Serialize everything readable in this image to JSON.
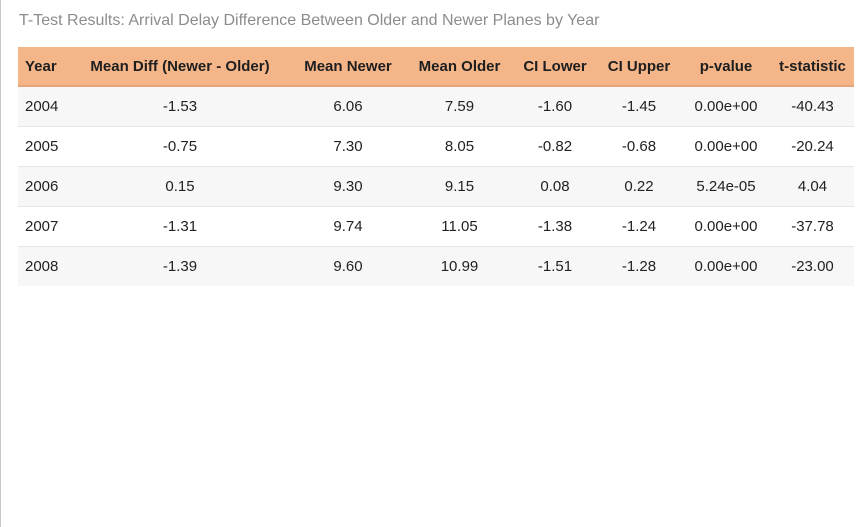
{
  "caption": "T-Test Results: Arrival Delay Difference Between Older and Newer Planes by Year",
  "colors": {
    "header_bg": "#f4b589",
    "row_alt_bg": "#f7f7f7",
    "caption_text": "#8c8c8c"
  },
  "table": {
    "headers": [
      "Year",
      "Mean Diff (Newer - Older)",
      "Mean Newer",
      "Mean Older",
      "CI Lower",
      "CI Upper",
      "p-value",
      "t-statistic"
    ],
    "rows": [
      [
        "2004",
        "-1.53",
        "6.06",
        "7.59",
        "-1.60",
        "-1.45",
        "0.00e+00",
        "-40.43"
      ],
      [
        "2005",
        "-0.75",
        "7.30",
        "8.05",
        "-0.82",
        "-0.68",
        "0.00e+00",
        "-20.24"
      ],
      [
        "2006",
        "0.15",
        "9.30",
        "9.15",
        "0.08",
        "0.22",
        "5.24e-05",
        "4.04"
      ],
      [
        "2007",
        "-1.31",
        "9.74",
        "11.05",
        "-1.38",
        "-1.24",
        "0.00e+00",
        "-37.78"
      ],
      [
        "2008",
        "-1.39",
        "9.60",
        "10.99",
        "-1.51",
        "-1.28",
        "0.00e+00",
        "-23.00"
      ]
    ]
  }
}
